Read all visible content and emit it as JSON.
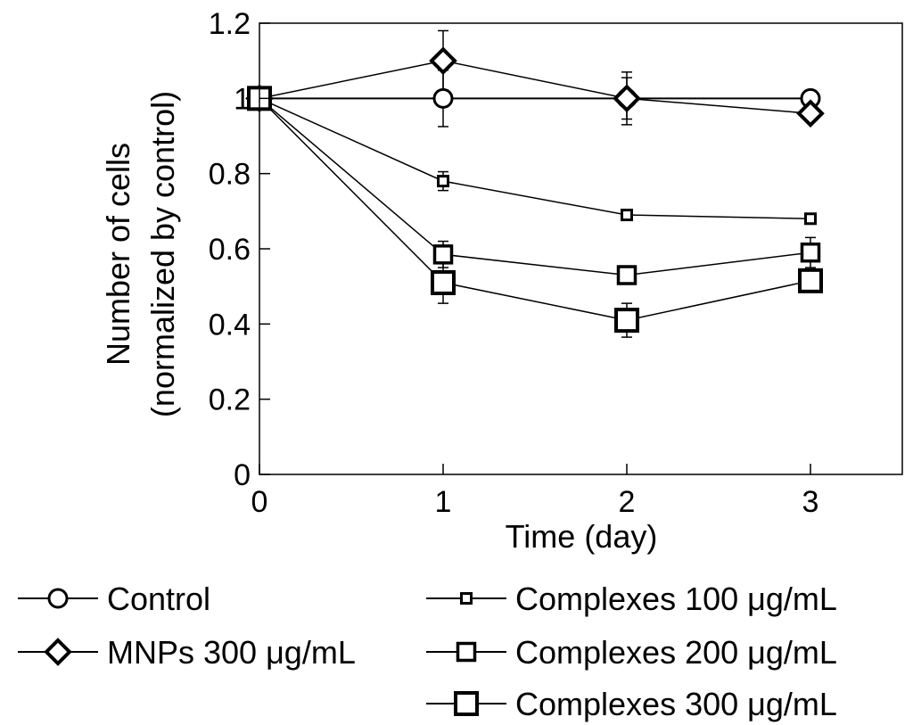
{
  "chart_data": {
    "type": "line",
    "title": "",
    "xlabel": "Time (day)",
    "ylabel_line1": "Number of cells",
    "ylabel_line2": "(normalized by control)",
    "xlim": [
      0,
      3.5
    ],
    "ylim": [
      0,
      1.2
    ],
    "xticks": [
      0,
      1,
      2,
      3
    ],
    "xtick_labels": [
      "0",
      "1",
      "2",
      "3"
    ],
    "yticks": [
      0,
      0.2,
      0.4,
      0.6,
      0.8,
      1.0,
      1.2
    ],
    "ytick_labels": [
      "0",
      "0.2",
      "0.4",
      "0.6",
      "0.8",
      "1",
      "1.2"
    ],
    "grid": false,
    "legend_position": "bottom",
    "x": [
      0,
      1,
      2,
      3
    ],
    "series": [
      {
        "name": "Control",
        "marker": "circle",
        "values": [
          1.0,
          1.0,
          1.0,
          1.0
        ],
        "errors": [
          0,
          0.075,
          0.055,
          0
        ]
      },
      {
        "name": "MNPs 300 μg/mL",
        "marker": "diamond",
        "values": [
          1.0,
          1.1,
          1.0,
          0.96
        ],
        "errors": [
          0,
          0.08,
          0.07,
          0.01
        ]
      },
      {
        "name": "Complexes 100 μg/mL",
        "marker": "square-small",
        "values": [
          1.0,
          0.78,
          0.69,
          0.68
        ],
        "errors": [
          0,
          0.025,
          0.008,
          0.01
        ]
      },
      {
        "name": "Complexes 200 μg/mL",
        "marker": "square-medium",
        "values": [
          1.0,
          0.585,
          0.53,
          0.59
        ],
        "errors": [
          0,
          0.035,
          0.012,
          0.04
        ]
      },
      {
        "name": "Complexes 300 μg/mL",
        "marker": "square-large",
        "values": [
          1.0,
          0.51,
          0.41,
          0.515
        ],
        "errors": [
          0,
          0.055,
          0.045,
          0.02
        ]
      }
    ]
  }
}
